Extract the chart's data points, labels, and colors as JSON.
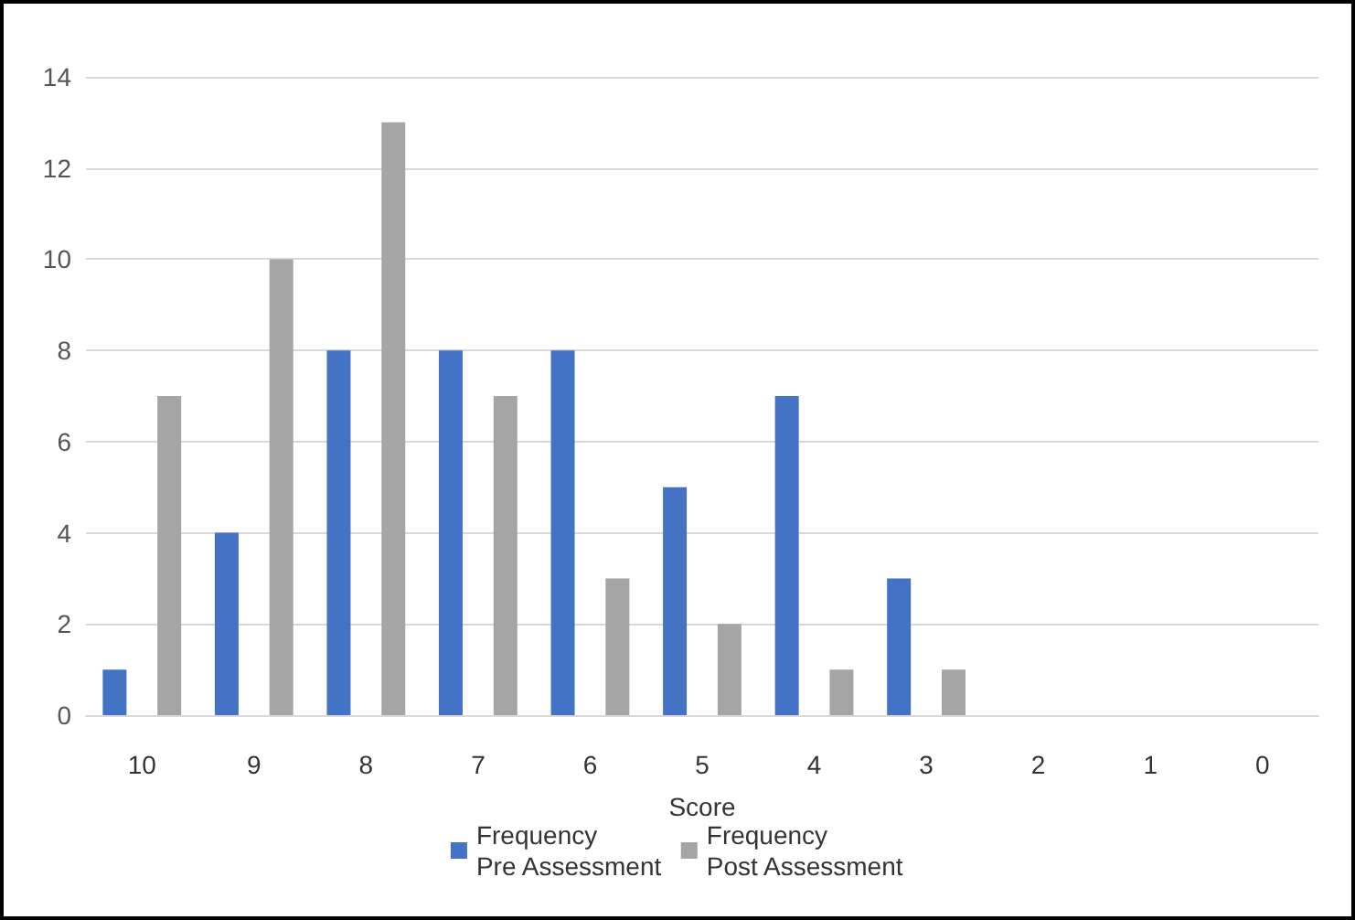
{
  "chart_data": {
    "type": "bar",
    "xlabel": "Score",
    "categories": [
      "10",
      "9",
      "8",
      "7",
      "6",
      "5",
      "4",
      "3",
      "2",
      "1",
      "0"
    ],
    "series": [
      {
        "name": "Frequency\nPre Assessment",
        "color": "#4472c4",
        "values": [
          1,
          4,
          8,
          8,
          8,
          5,
          7,
          3,
          0,
          0,
          0
        ]
      },
      {
        "name": "Frequency\nPost Assessment",
        "color": "#a5a5a5",
        "values": [
          7,
          10,
          13,
          7,
          3,
          2,
          1,
          1,
          0,
          0,
          0
        ]
      }
    ],
    "ylim": [
      0,
      14
    ],
    "yticks": [
      0,
      2,
      4,
      6,
      8,
      10,
      12,
      14
    ],
    "grid": "y",
    "legend": "bottom"
  }
}
